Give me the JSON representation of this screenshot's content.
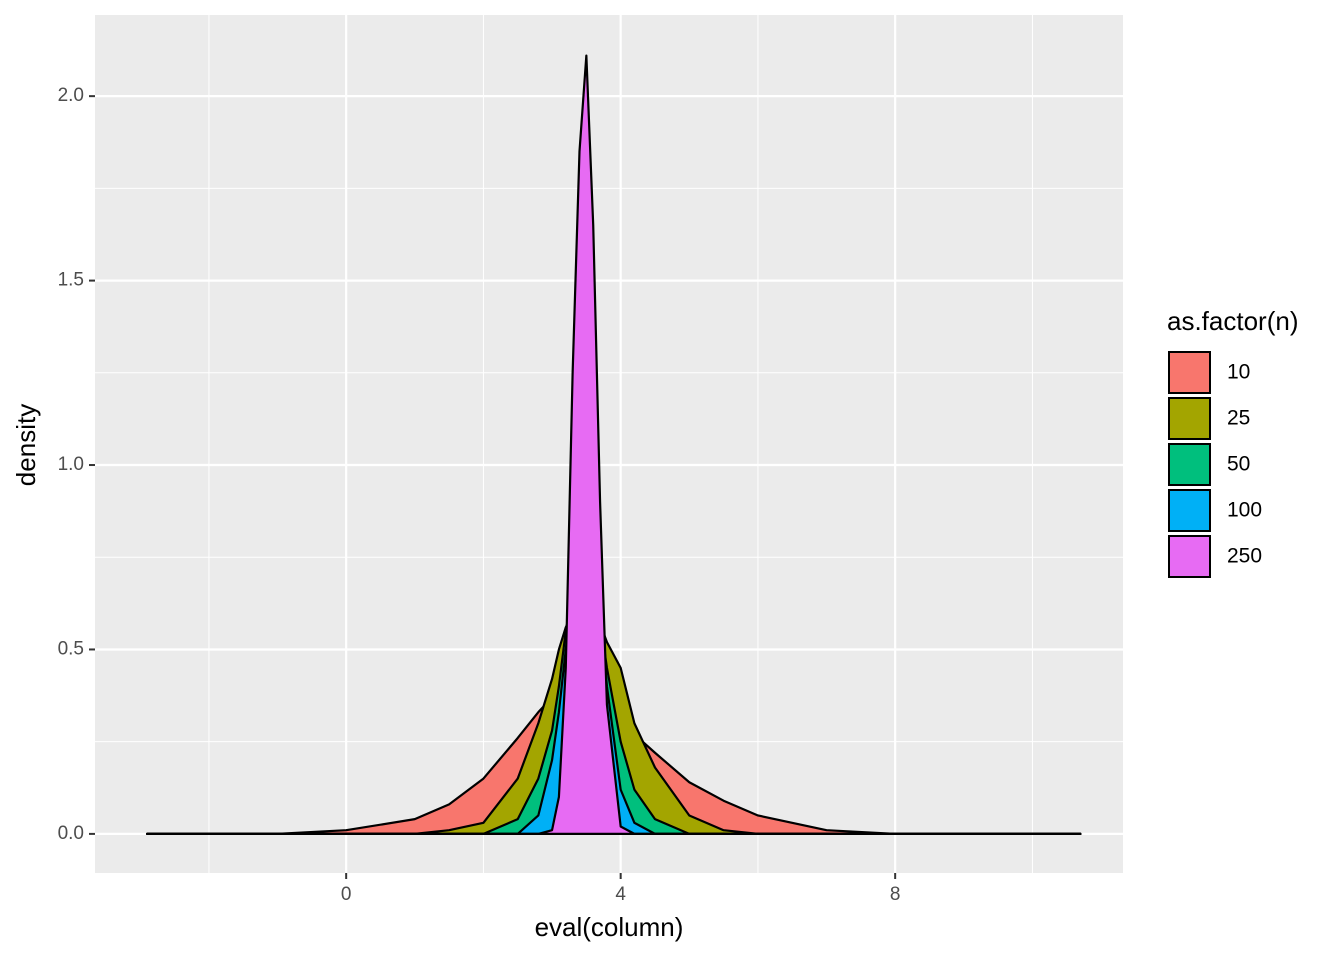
{
  "chart_data": {
    "type": "area",
    "x_label": "eval(column)",
    "y_label": "density",
    "legend_title": "as.factor(n)",
    "x": [
      -2.9,
      -1,
      0,
      1,
      1.5,
      2,
      2.5,
      2.8,
      3,
      3.1,
      3.2,
      3.3,
      3.4,
      3.5,
      3.6,
      3.7,
      3.8,
      4,
      4.2,
      4.5,
      5,
      5.5,
      6,
      7,
      8,
      10.7
    ],
    "series": [
      {
        "name": "10",
        "color": "#F8766D",
        "values": [
          0,
          0,
          0.01,
          0.04,
          0.08,
          0.15,
          0.26,
          0.33,
          0.37,
          0.39,
          0.4,
          0.41,
          0.42,
          0.42,
          0.41,
          0.39,
          0.37,
          0.32,
          0.27,
          0.22,
          0.14,
          0.09,
          0.05,
          0.01,
          0,
          0
        ]
      },
      {
        "name": "25",
        "color": "#A3A500",
        "values": [
          0,
          0,
          0,
          0,
          0.01,
          0.03,
          0.15,
          0.3,
          0.42,
          0.5,
          0.56,
          0.6,
          0.63,
          0.64,
          0.62,
          0.57,
          0.52,
          0.45,
          0.3,
          0.18,
          0.05,
          0.01,
          0,
          0,
          0,
          0
        ]
      },
      {
        "name": "50",
        "color": "#00BF7D",
        "values": [
          0,
          0,
          0,
          0,
          0,
          0,
          0.04,
          0.15,
          0.28,
          0.4,
          0.55,
          0.65,
          0.7,
          0.72,
          0.68,
          0.58,
          0.45,
          0.25,
          0.12,
          0.04,
          0,
          0,
          0,
          0,
          0,
          0
        ]
      },
      {
        "name": "100",
        "color": "#00B0F6",
        "values": [
          0,
          0,
          0,
          0,
          0,
          0,
          0,
          0.05,
          0.2,
          0.33,
          0.5,
          0.65,
          0.75,
          0.78,
          0.75,
          0.6,
          0.4,
          0.12,
          0.03,
          0,
          0,
          0,
          0,
          0,
          0,
          0
        ]
      },
      {
        "name": "250",
        "color": "#E76BF3",
        "values": [
          0,
          0,
          0,
          0,
          0,
          0,
          0,
          0,
          0.01,
          0.1,
          0.45,
          1.25,
          1.85,
          2.11,
          1.65,
          0.9,
          0.35,
          0.02,
          0,
          0,
          0,
          0,
          0,
          0,
          0,
          0
        ]
      }
    ],
    "xlim": [
      -3.66,
      11.32
    ],
    "ylim": [
      -0.106,
      2.22
    ],
    "xticks": [
      0,
      4,
      8
    ],
    "yticks": [
      {
        "value": 0,
        "label": "0.0"
      },
      {
        "value": 0.5,
        "label": "0.5"
      },
      {
        "value": 1,
        "label": "1.0"
      },
      {
        "value": 1.5,
        "label": "1.5"
      },
      {
        "value": 2,
        "label": "2.0"
      }
    ],
    "grid": true,
    "legend_position": "right"
  }
}
